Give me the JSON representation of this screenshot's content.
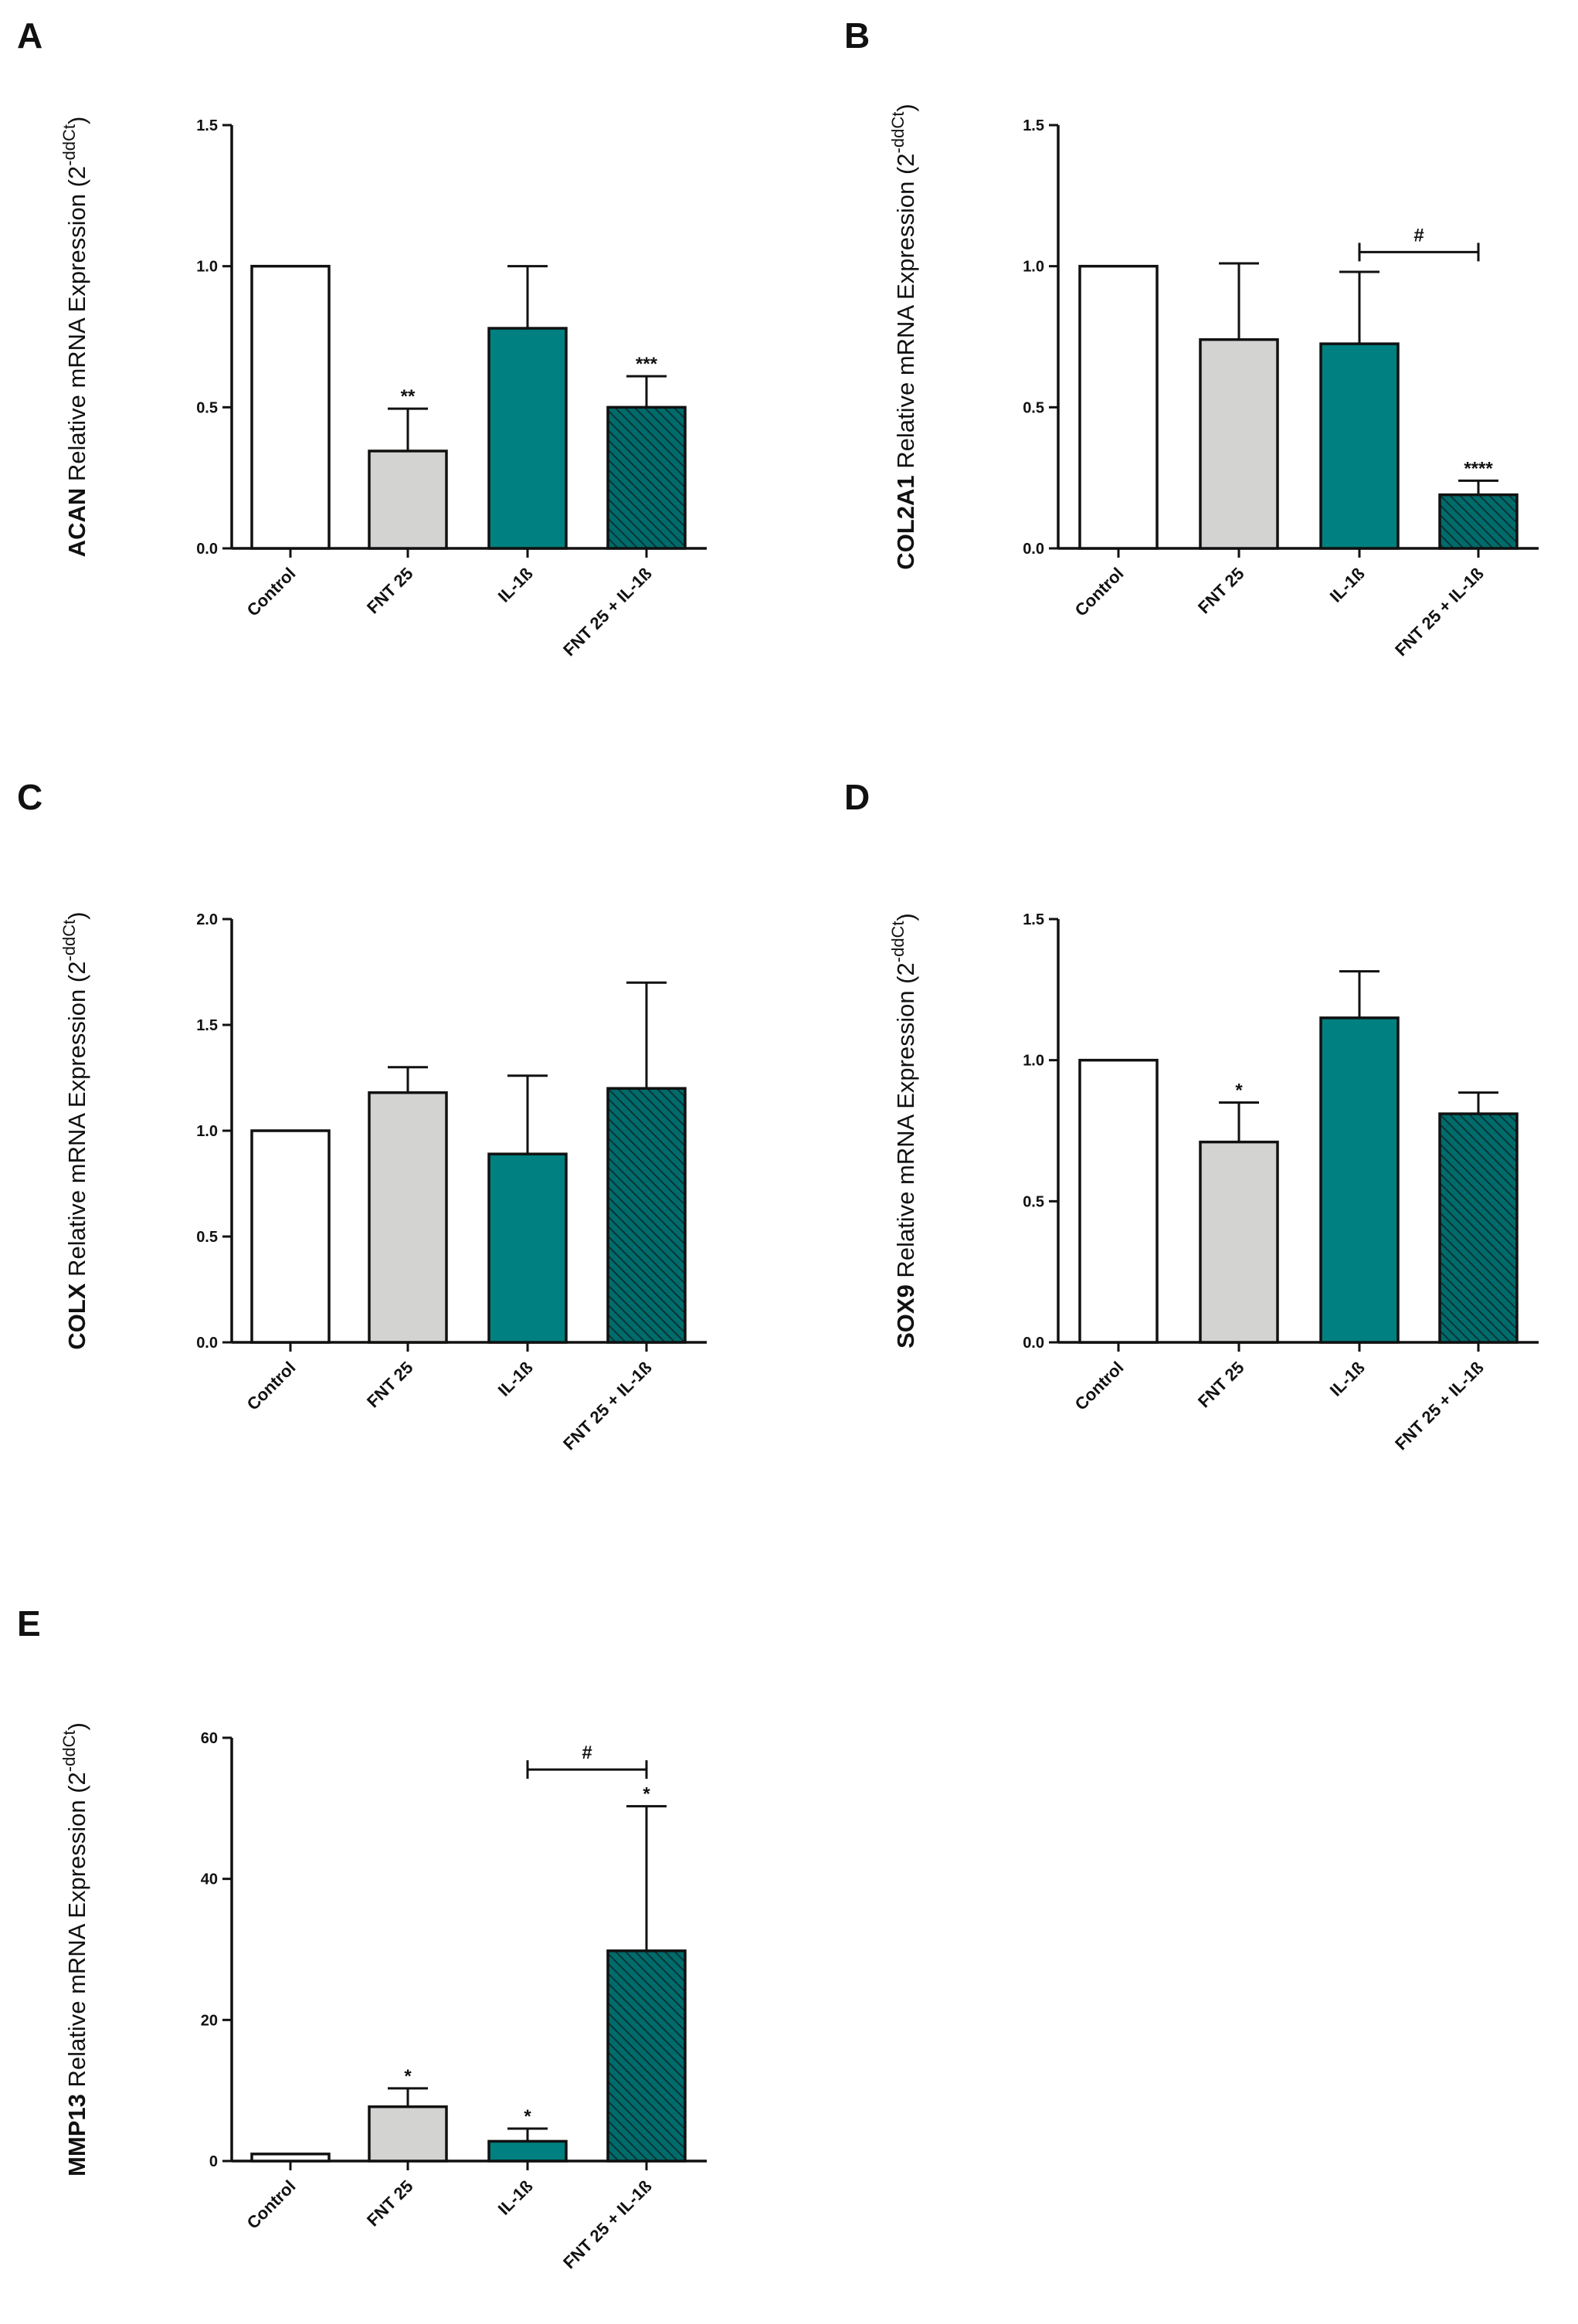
{
  "colors": {
    "control": "#ffffff",
    "fnt25": "#d3d3d1",
    "il1b": "#008080",
    "combo": "#006b6b",
    "combo_hatch": "#0a2e2e",
    "stroke": "#111111"
  },
  "chart_data": [
    {
      "panel": "A",
      "type": "bar",
      "gene": "ACAN",
      "ylabel": "Relative mRNA Expression (2",
      "ylabel_sup": "-ddCt",
      "ylabel_close": ")",
      "categories": [
        "Control",
        "FNT 25",
        "IL-1ß",
        "FNT 25 + IL-1ß"
      ],
      "values": [
        1.0,
        0.345,
        0.78,
        0.5
      ],
      "errors": [
        0,
        0.15,
        0.22,
        0.11
      ],
      "significance": [
        "",
        "**",
        "",
        "***"
      ],
      "ylim": [
        0,
        1.5
      ],
      "yticks": [
        0.0,
        0.5,
        1.0,
        1.5
      ],
      "ytick_labels": [
        "0.0",
        "0.5",
        "1.0",
        "1.5"
      ],
      "brackets": []
    },
    {
      "panel": "B",
      "type": "bar",
      "gene": "COL2A1",
      "ylabel": "Relative mRNA Expression (2",
      "ylabel_sup": "-ddCt",
      "ylabel_close": ")",
      "categories": [
        "Control",
        "FNT 25",
        "IL-1ß",
        "FNT 25 + IL-1ß"
      ],
      "values": [
        1.0,
        0.74,
        0.725,
        0.19
      ],
      "errors": [
        0,
        0.27,
        0.255,
        0.05
      ],
      "significance": [
        "",
        "",
        "",
        "****"
      ],
      "ylim": [
        0,
        1.5
      ],
      "yticks": [
        0.0,
        0.5,
        1.0,
        1.5
      ],
      "ytick_labels": [
        "0.0",
        "0.5",
        "1.0",
        "1.5"
      ],
      "brackets": [
        {
          "from": 2,
          "to": 3,
          "y": 1.05,
          "label": "#"
        }
      ]
    },
    {
      "panel": "C",
      "type": "bar",
      "gene": "COLX",
      "ylabel": "Relative mRNA Expression (2",
      "ylabel_sup": "-ddCt",
      "ylabel_close": ")",
      "categories": [
        "Control",
        "FNT 25",
        "IL-1ß",
        "FNT 25 + IL-1ß"
      ],
      "values": [
        1.0,
        1.18,
        0.89,
        1.2
      ],
      "errors": [
        0,
        0.12,
        0.37,
        0.5
      ],
      "significance": [
        "",
        "",
        "",
        ""
      ],
      "ylim": [
        0,
        2.0
      ],
      "yticks": [
        0.0,
        0.5,
        1.0,
        1.5,
        2.0
      ],
      "ytick_labels": [
        "0.0",
        "0.5",
        "1.0",
        "1.5",
        "2.0"
      ],
      "brackets": []
    },
    {
      "panel": "D",
      "type": "bar",
      "gene": "SOX9",
      "ylabel": "Relative mRNA Expression (2",
      "ylabel_sup": "-ddCt",
      "ylabel_close": ")",
      "categories": [
        "Control",
        "FNT 25",
        "IL-1ß",
        "FNT 25 + IL-1ß"
      ],
      "values": [
        1.0,
        0.71,
        1.15,
        0.81
      ],
      "errors": [
        0,
        0.14,
        0.165,
        0.075
      ],
      "significance": [
        "",
        "*",
        "",
        ""
      ],
      "ylim": [
        0,
        1.5
      ],
      "yticks": [
        0.0,
        0.5,
        1.0,
        1.5
      ],
      "ytick_labels": [
        "0.0",
        "0.5",
        "1.0",
        "1.5"
      ],
      "brackets": []
    },
    {
      "panel": "E",
      "type": "bar",
      "gene": "MMP13",
      "ylabel": "Relative mRNA Expression (2",
      "ylabel_sup": "-ddCt",
      "ylabel_close": ")",
      "categories": [
        "Control",
        "FNT 25",
        "IL-1ß",
        "FNT 25 + IL-1ß"
      ],
      "values": [
        1.0,
        7.7,
        2.8,
        29.8
      ],
      "errors": [
        0,
        2.6,
        1.8,
        20.5
      ],
      "significance": [
        "",
        "*",
        "*",
        "*"
      ],
      "ylim": [
        0,
        60
      ],
      "yticks": [
        0,
        20,
        40,
        60
      ],
      "ytick_labels": [
        "0",
        "20",
        "40",
        "60"
      ],
      "brackets": [
        {
          "from": 2,
          "to": 3,
          "y": 55.5,
          "label": "#"
        }
      ]
    }
  ]
}
